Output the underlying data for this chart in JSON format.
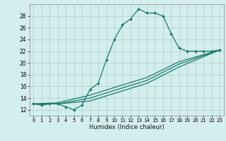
{
  "title": "",
  "xlabel": "Humidex (Indice chaleur)",
  "ylabel": "",
  "background_color": "#d4eeed",
  "grid_color": "#aed4d0",
  "line_color": "#1a7a6e",
  "xlim": [
    -0.5,
    23.5
  ],
  "ylim": [
    11,
    30
  ],
  "yticks": [
    12,
    14,
    16,
    18,
    20,
    22,
    24,
    26,
    28
  ],
  "xticks": [
    0,
    1,
    2,
    3,
    4,
    5,
    6,
    7,
    8,
    9,
    10,
    11,
    12,
    13,
    14,
    15,
    16,
    17,
    18,
    19,
    20,
    21,
    22,
    23
  ],
  "xtick_labels": [
    "0",
    "1",
    "2",
    "3",
    "4",
    "5",
    "6",
    "7",
    "8",
    "9",
    "10",
    "11",
    "12",
    "13",
    "14",
    "15",
    "16",
    "17",
    "18",
    "19",
    "20",
    "21",
    "22",
    "23"
  ],
  "series": [
    [
      0,
      13.0
    ],
    [
      1,
      12.8
    ],
    [
      2,
      13.0
    ],
    [
      3,
      13.0
    ],
    [
      4,
      12.5
    ],
    [
      5,
      12.0
    ],
    [
      6,
      12.8
    ],
    [
      7,
      15.5
    ],
    [
      8,
      16.5
    ],
    [
      9,
      20.5
    ],
    [
      10,
      24.0
    ],
    [
      11,
      26.5
    ],
    [
      12,
      27.5
    ],
    [
      13,
      29.2
    ],
    [
      14,
      28.5
    ],
    [
      15,
      28.5
    ],
    [
      16,
      28.0
    ],
    [
      17,
      25.0
    ],
    [
      18,
      22.5
    ],
    [
      19,
      22.0
    ],
    [
      20,
      22.0
    ],
    [
      21,
      22.0
    ],
    [
      22,
      22.0
    ],
    [
      23,
      22.2
    ]
  ],
  "series2": [
    [
      0,
      13.0
    ],
    [
      23,
      22.2
    ]
  ],
  "series3": [
    [
      0,
      13.0
    ],
    [
      23,
      22.2
    ]
  ],
  "series4": [
    [
      0,
      13.0
    ],
    [
      23,
      22.2
    ]
  ],
  "s2_waypoints": [
    [
      0,
      13.0
    ],
    [
      3,
      13.2
    ],
    [
      7,
      14.5
    ],
    [
      10,
      15.8
    ],
    [
      14,
      17.5
    ],
    [
      18,
      20.2
    ],
    [
      23,
      22.2
    ]
  ],
  "s3_waypoints": [
    [
      0,
      13.0
    ],
    [
      3,
      13.0
    ],
    [
      7,
      14.0
    ],
    [
      10,
      15.3
    ],
    [
      14,
      17.0
    ],
    [
      18,
      19.8
    ],
    [
      23,
      22.2
    ]
  ],
  "s4_waypoints": [
    [
      0,
      13.0
    ],
    [
      3,
      13.0
    ],
    [
      7,
      13.5
    ],
    [
      10,
      14.8
    ],
    [
      14,
      16.5
    ],
    [
      18,
      19.3
    ],
    [
      23,
      22.2
    ]
  ]
}
